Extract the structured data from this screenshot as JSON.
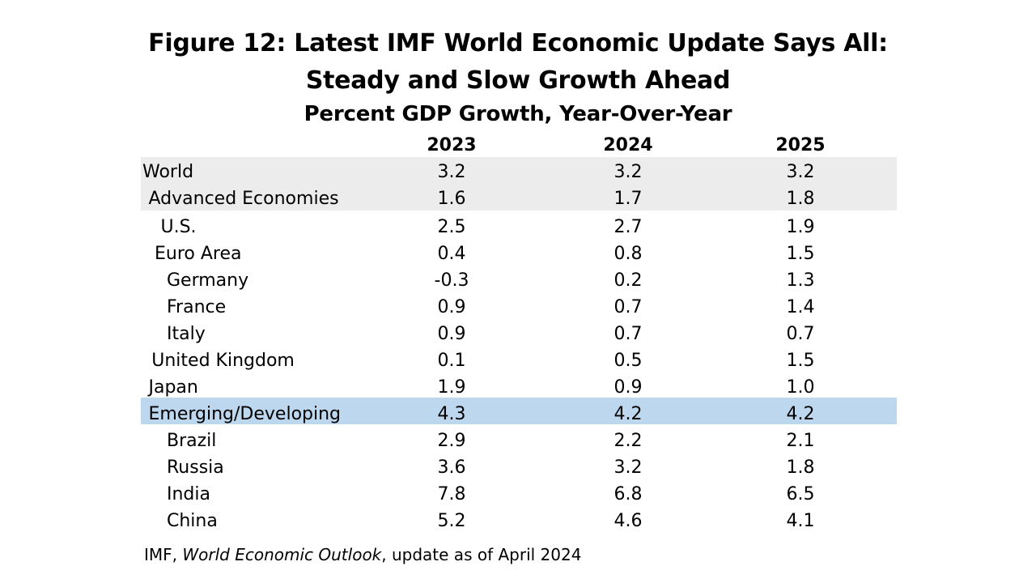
{
  "title_line1": "Figure 12: Latest IMF World Economic Update Says All:",
  "title_line2": "Steady and Slow Growth Ahead",
  "subtitle": "Percent GDP Growth, Year-Over-Year",
  "source_prefix": "IMF, ",
  "source_italic": "World Economic Outlook",
  "source_suffix": ", update as of April 2024",
  "chart_data": {
    "type": "table",
    "title": "Figure 12: Latest IMF World Economic Update Says All: Steady and Slow Growth Ahead",
    "subtitle": "Percent GDP Growth, Year-Over-Year",
    "columns": [
      "2023",
      "2024",
      "2025"
    ],
    "rows": [
      {
        "label": "World",
        "level": 0,
        "highlight": "gray",
        "values": [
          "3.2",
          "3.2",
          "3.2"
        ]
      },
      {
        "label": "Advanced Economies",
        "level": 1,
        "highlight": "gray",
        "values": [
          "1.6",
          "1.7",
          "1.8"
        ]
      },
      {
        "label": "U.S.",
        "level": 3,
        "highlight": "none",
        "values": [
          "2.5",
          "2.7",
          "1.9"
        ]
      },
      {
        "label": "Euro Area",
        "level": 2,
        "highlight": "none",
        "values": [
          "0.4",
          "0.8",
          "1.5"
        ]
      },
      {
        "label": "Germany",
        "level": 4,
        "highlight": "none",
        "values": [
          "-0.3",
          "0.2",
          "1.3"
        ]
      },
      {
        "label": "France",
        "level": 4,
        "highlight": "none",
        "values": [
          "0.9",
          "0.7",
          "1.4"
        ]
      },
      {
        "label": "Italy",
        "level": 4,
        "highlight": "none",
        "values": [
          "0.9",
          "0.7",
          "0.7"
        ]
      },
      {
        "label": "United Kingdom",
        "level": 1.5,
        "highlight": "none",
        "values": [
          "0.1",
          "0.5",
          "1.5"
        ]
      },
      {
        "label": "Japan",
        "level": 1,
        "highlight": "none",
        "values": [
          "1.9",
          "0.9",
          "1.0"
        ]
      },
      {
        "label": "Emerging/Developing",
        "level": 1,
        "highlight": "blue",
        "values": [
          "4.3",
          "4.2",
          "4.2"
        ]
      },
      {
        "label": "Brazil",
        "level": 4,
        "highlight": "none",
        "values": [
          "2.9",
          "2.2",
          "2.1"
        ]
      },
      {
        "label": "Russia",
        "level": 4,
        "highlight": "none",
        "values": [
          "3.6",
          "3.2",
          "1.8"
        ]
      },
      {
        "label": "India",
        "level": 4,
        "highlight": "none",
        "values": [
          "7.8",
          "6.8",
          "6.5"
        ]
      },
      {
        "label": "China",
        "level": 4,
        "highlight": "none",
        "values": [
          "5.2",
          "4.6",
          "4.1"
        ]
      }
    ],
    "colors": {
      "gray_band": "#ececec",
      "blue_band": "#bdd7ee"
    }
  }
}
